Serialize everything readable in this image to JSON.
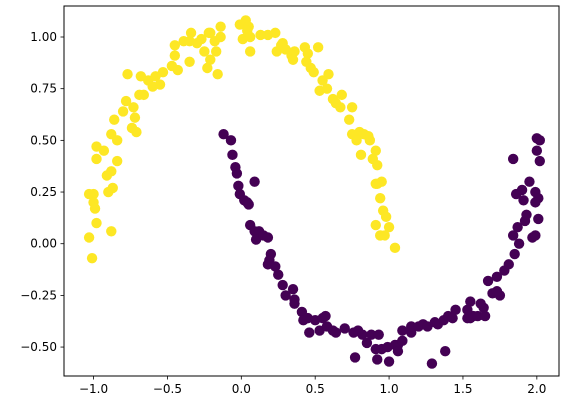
{
  "chart_data": {
    "type": "scatter",
    "title": "",
    "xlabel": "",
    "ylabel": "",
    "xlim": [
      -1.2,
      2.15
    ],
    "ylim": [
      -0.64,
      1.15
    ],
    "x_ticks": [
      -1.0,
      -0.5,
      0.0,
      0.5,
      1.0,
      1.5,
      2.0
    ],
    "x_tick_labels": [
      "−1.0",
      "−0.5",
      "0.0",
      "0.5",
      "1.0",
      "1.5",
      "2.0"
    ],
    "y_ticks": [
      -0.5,
      -0.25,
      0.0,
      0.25,
      0.5,
      0.75,
      1.0
    ],
    "y_tick_labels": [
      "−0.50",
      "−0.25",
      "0.00",
      "0.25",
      "0.50",
      "0.75",
      "1.00"
    ],
    "grid": false,
    "legend": "none",
    "colors": {
      "class_0": "#440154",
      "class_1": "#fde725",
      "axes": "#000000",
      "background": "#ffffff"
    },
    "series": [
      {
        "class": 1,
        "color": "#fde725",
        "points": [
          [
            -1.0,
            0.24
          ],
          [
            -1.03,
            0.24
          ],
          [
            -1.0,
            0.2
          ],
          [
            -0.99,
            0.17
          ],
          [
            -0.98,
            0.1
          ],
          [
            -1.03,
            0.03
          ],
          [
            -1.01,
            -0.07
          ],
          [
            -0.88,
            0.06
          ],
          [
            -0.98,
            0.47
          ],
          [
            -0.93,
            0.45
          ],
          [
            -0.98,
            0.41
          ],
          [
            -0.88,
            0.35
          ],
          [
            -0.9,
            0.25
          ],
          [
            -0.87,
            0.27
          ],
          [
            -0.84,
            0.4
          ],
          [
            -0.88,
            0.53
          ],
          [
            -0.84,
            0.5
          ],
          [
            -0.86,
            0.6
          ],
          [
            -0.8,
            0.64
          ],
          [
            -0.78,
            0.69
          ],
          [
            -0.74,
            0.56
          ],
          [
            -0.72,
            0.61
          ],
          [
            -0.71,
            0.54
          ],
          [
            -0.73,
            0.66
          ],
          [
            -0.69,
            0.72
          ],
          [
            -0.66,
            0.72
          ],
          [
            -0.63,
            0.79
          ],
          [
            -0.58,
            0.81
          ],
          [
            -0.55,
            0.77
          ],
          [
            -0.53,
            0.83
          ],
          [
            -0.77,
            0.82
          ],
          [
            -0.68,
            0.81
          ],
          [
            -0.43,
            0.84
          ],
          [
            -0.47,
            0.86
          ],
          [
            -0.45,
            0.91
          ],
          [
            -0.45,
            0.96
          ],
          [
            -0.39,
            0.98
          ],
          [
            -0.35,
            0.98
          ],
          [
            -0.34,
            1.02
          ],
          [
            -0.35,
            0.88
          ],
          [
            -0.3,
            0.97
          ],
          [
            -0.25,
            0.93
          ],
          [
            -0.27,
            0.99
          ],
          [
            -0.21,
            1.02
          ],
          [
            -0.18,
            0.98
          ],
          [
            -0.14,
            1.0
          ],
          [
            -0.23,
            0.85
          ],
          [
            -0.17,
            0.93
          ],
          [
            -0.21,
            0.89
          ],
          [
            -0.16,
            0.82
          ],
          [
            -0.22,
            1.02
          ],
          [
            -0.14,
            1.05
          ],
          [
            -0.01,
            1.06
          ],
          [
            0.03,
            1.08
          ],
          [
            0.05,
            1.05
          ],
          [
            0.01,
            0.99
          ],
          [
            0.04,
            1.03
          ],
          [
            0.06,
            1.0
          ],
          [
            0.06,
            0.93
          ],
          [
            0.13,
            1.01
          ],
          [
            0.18,
            1.01
          ],
          [
            0.23,
            1.02
          ],
          [
            0.28,
            0.97
          ],
          [
            0.24,
            0.93
          ],
          [
            0.27,
            0.96
          ],
          [
            0.3,
            0.94
          ],
          [
            0.36,
            0.93
          ],
          [
            0.34,
            0.91
          ],
          [
            0.35,
            0.89
          ],
          [
            0.43,
            0.95
          ],
          [
            0.45,
            0.92
          ],
          [
            0.44,
            0.88
          ],
          [
            0.47,
            0.85
          ],
          [
            0.52,
            0.95
          ],
          [
            0.49,
            0.83
          ],
          [
            0.59,
            0.82
          ],
          [
            0.55,
            0.79
          ],
          [
            0.53,
            0.74
          ],
          [
            0.58,
            0.75
          ],
          [
            0.62,
            0.7
          ],
          [
            0.64,
            0.68
          ],
          [
            0.68,
            0.72
          ],
          [
            0.67,
            0.66
          ],
          [
            0.75,
            0.66
          ],
          [
            0.73,
            0.6
          ],
          [
            0.8,
            0.54
          ],
          [
            0.75,
            0.53
          ],
          [
            0.83,
            0.53
          ],
          [
            0.86,
            0.52
          ],
          [
            0.87,
            0.5
          ],
          [
            0.91,
            0.45
          ],
          [
            0.89,
            0.41
          ],
          [
            0.92,
            0.38
          ],
          [
            0.91,
            0.29
          ],
          [
            0.95,
            0.3
          ],
          [
            0.94,
            0.22
          ],
          [
            0.96,
            0.16
          ],
          [
            0.91,
            0.09
          ],
          [
            0.94,
            0.04
          ],
          [
            0.97,
            0.04
          ],
          [
            1.0,
            0.08
          ],
          [
            1.04,
            -0.02
          ],
          [
            0.92,
            0.29
          ],
          [
            0.81,
            0.43
          ],
          [
            0.78,
            0.5
          ],
          [
            0.98,
            0.13
          ],
          [
            -0.91,
            0.33
          ],
          [
            -0.6,
            0.76
          ]
        ]
      },
      {
        "class": 0,
        "color": "#440154",
        "points": [
          [
            -0.12,
            0.53
          ],
          [
            -0.07,
            0.5
          ],
          [
            -0.06,
            0.43
          ],
          [
            -0.04,
            0.37
          ],
          [
            -0.03,
            0.34
          ],
          [
            -0.02,
            0.28
          ],
          [
            0.09,
            0.3
          ],
          [
            -0.01,
            0.24
          ],
          [
            0.02,
            0.21
          ],
          [
            0.04,
            0.2
          ],
          [
            0.05,
            0.19
          ],
          [
            0.06,
            0.09
          ],
          [
            0.09,
            0.06
          ],
          [
            0.12,
            0.06
          ],
          [
            0.1,
            0.02
          ],
          [
            0.15,
            0.04
          ],
          [
            0.18,
            0.03
          ],
          [
            0.2,
            -0.05
          ],
          [
            0.19,
            -0.08
          ],
          [
            0.18,
            -0.1
          ],
          [
            0.23,
            -0.11
          ],
          [
            0.25,
            -0.15
          ],
          [
            0.28,
            -0.2
          ],
          [
            0.35,
            -0.22
          ],
          [
            0.3,
            -0.25
          ],
          [
            0.36,
            -0.27
          ],
          [
            0.36,
            -0.29
          ],
          [
            0.41,
            -0.33
          ],
          [
            0.42,
            -0.37
          ],
          [
            0.45,
            -0.36
          ],
          [
            0.5,
            -0.37
          ],
          [
            0.55,
            -0.36
          ],
          [
            0.57,
            -0.35
          ],
          [
            0.53,
            -0.42
          ],
          [
            0.58,
            -0.4
          ],
          [
            0.46,
            -0.43
          ],
          [
            0.62,
            -0.42
          ],
          [
            0.64,
            -0.43
          ],
          [
            0.7,
            -0.41
          ],
          [
            0.76,
            -0.43
          ],
          [
            0.79,
            -0.42
          ],
          [
            0.82,
            -0.44
          ],
          [
            0.88,
            -0.44
          ],
          [
            0.93,
            -0.44
          ],
          [
            0.85,
            -0.48
          ],
          [
            0.91,
            -0.51
          ],
          [
            0.95,
            -0.51
          ],
          [
            0.99,
            -0.5
          ],
          [
            1.04,
            -0.49
          ],
          [
            1.06,
            -0.49
          ],
          [
            1.09,
            -0.47
          ],
          [
            1.15,
            -0.43
          ],
          [
            1.09,
            -0.42
          ],
          [
            1.15,
            -0.4
          ],
          [
            1.2,
            -0.4
          ],
          [
            1.23,
            -0.39
          ],
          [
            1.26,
            -0.4
          ],
          [
            1.31,
            -0.38
          ],
          [
            1.33,
            -0.39
          ],
          [
            1.37,
            -0.37
          ],
          [
            1.4,
            -0.35
          ],
          [
            1.43,
            -0.36
          ],
          [
            1.45,
            -0.32
          ],
          [
            1.53,
            -0.36
          ],
          [
            1.55,
            -0.36
          ],
          [
            1.57,
            -0.35
          ],
          [
            1.6,
            -0.35
          ],
          [
            1.65,
            -0.35
          ],
          [
            1.64,
            -0.31
          ],
          [
            1.55,
            -0.28
          ],
          [
            1.53,
            -0.32
          ],
          [
            1.62,
            -0.29
          ],
          [
            1.7,
            -0.24
          ],
          [
            1.75,
            -0.25
          ],
          [
            1.73,
            -0.23
          ],
          [
            1.67,
            -0.18
          ],
          [
            1.73,
            -0.16
          ],
          [
            1.78,
            -0.13
          ],
          [
            1.81,
            -0.1
          ],
          [
            1.85,
            -0.05
          ],
          [
            1.88,
            0.0
          ],
          [
            1.84,
            0.04
          ],
          [
            1.87,
            0.08
          ],
          [
            1.92,
            0.11
          ],
          [
            1.93,
            0.14
          ],
          [
            1.91,
            0.21
          ],
          [
            1.86,
            0.24
          ],
          [
            1.9,
            0.26
          ],
          [
            1.95,
            0.3
          ],
          [
            1.99,
            0.25
          ],
          [
            2.01,
            0.22
          ],
          [
            1.99,
            0.2
          ],
          [
            2.01,
            0.12
          ],
          [
            1.97,
            0.03
          ],
          [
            1.99,
            0.04
          ],
          [
            2.02,
            0.4
          ],
          [
            2.0,
            0.45
          ],
          [
            2.0,
            0.51
          ],
          [
            2.02,
            0.5
          ],
          [
            1.84,
            0.41
          ],
          [
            0.77,
            -0.55
          ],
          [
            0.92,
            -0.56
          ],
          [
            1.06,
            -0.52
          ],
          [
            1.29,
            -0.58
          ],
          [
            1.38,
            -0.52
          ],
          [
            1.0,
            -0.57
          ]
        ]
      }
    ]
  }
}
